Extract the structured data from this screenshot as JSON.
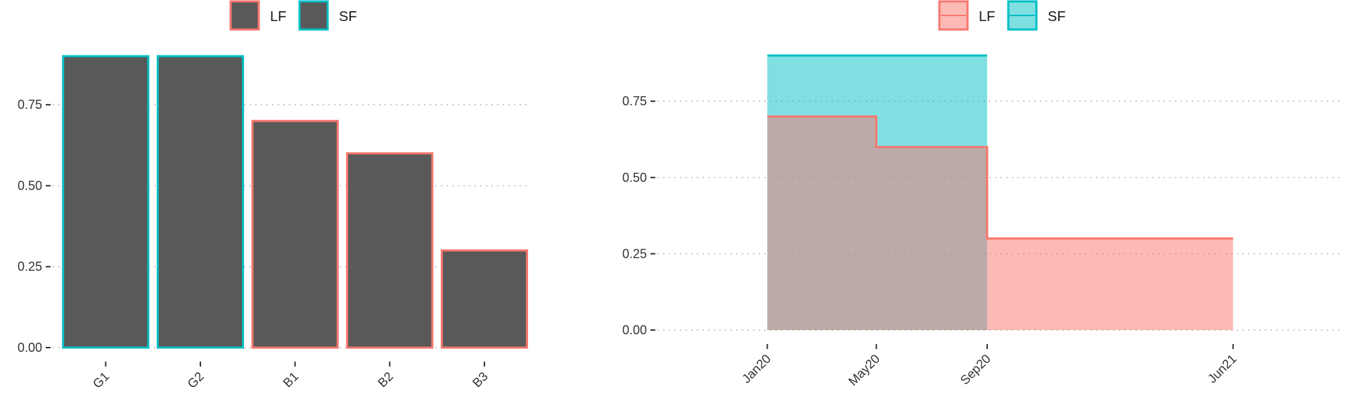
{
  "colors": {
    "LF": "#F8766D",
    "SF": "#00BFC4",
    "bar_fill": "#595959",
    "LF_fill": "#F8766D",
    "SF_fill": "#00BFC4"
  },
  "chart_data": [
    {
      "type": "bar",
      "title": "",
      "xlabel": "",
      "ylabel": "",
      "categories": [
        "G1",
        "G2",
        "B1",
        "B2",
        "B3"
      ],
      "values": [
        0.9,
        0.9,
        0.7,
        0.6,
        0.3
      ],
      "group": [
        "SF",
        "SF",
        "LF",
        "LF",
        "LF"
      ],
      "ylim": [
        0,
        0.9
      ],
      "yticks": [
        0,
        0.25,
        0.5,
        0.75
      ],
      "ytick_labels": [
        "0.00",
        "0.25",
        "0.50",
        "0.75"
      ],
      "legend": {
        "position": "top",
        "entries": [
          "LF",
          "SF"
        ]
      },
      "grid": "horizontal dotted"
    },
    {
      "type": "area",
      "title": "",
      "xlabel": "",
      "ylabel": "",
      "step": true,
      "xticks": [
        "2020-01-01",
        "2020-05-01",
        "2020-09-01",
        "2021-06-01"
      ],
      "xtick_labels": [
        "Jan20",
        "May20",
        "Sep20",
        "Jun21"
      ],
      "xlim": [
        "2019-09-01",
        "2021-10-01"
      ],
      "ylim": [
        0,
        0.9
      ],
      "yticks": [
        0,
        0.25,
        0.5,
        0.75
      ],
      "ytick_labels": [
        "0.00",
        "0.25",
        "0.50",
        "0.75"
      ],
      "series": [
        {
          "name": "LF",
          "x": [
            "2020-01-01",
            "2020-05-01",
            "2020-09-01",
            "2021-06-01"
          ],
          "values": [
            0.7,
            0.6,
            0.3,
            0.3
          ]
        },
        {
          "name": "SF",
          "x": [
            "2020-01-01",
            "2020-09-01"
          ],
          "values": [
            0.9,
            0.9
          ]
        }
      ],
      "legend": {
        "position": "top",
        "entries": [
          "LF",
          "SF"
        ]
      },
      "grid": "horizontal dotted"
    }
  ]
}
